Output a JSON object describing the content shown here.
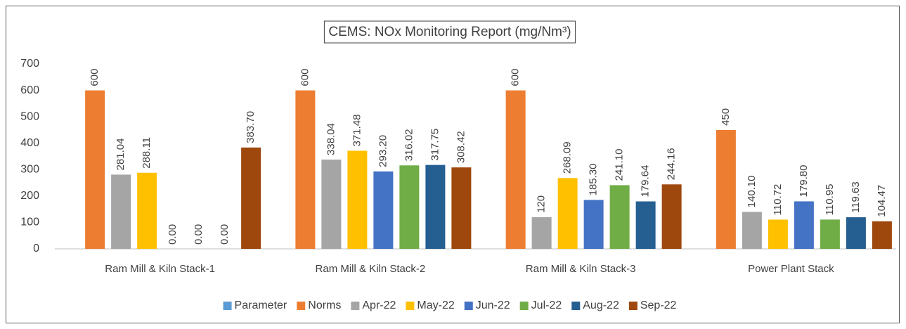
{
  "chart_data": {
    "type": "bar",
    "title": "CEMS: NOx Monitoring Report (mg/Nm³)",
    "categories": [
      "Ram Mill & Kiln Stack-1",
      "Ram Mill & Kiln Stack-2",
      "Ram Mill & Kiln Stack-3",
      "Power Plant Stack"
    ],
    "series": [
      {
        "name": "Parameter",
        "color": "#5b9bd5",
        "values": [
          null,
          null,
          null,
          null
        ]
      },
      {
        "name": "Norms",
        "color": "#ed7d31",
        "values": [
          600,
          600,
          600,
          450
        ]
      },
      {
        "name": "Apr-22",
        "color": "#a5a5a5",
        "values": [
          281.04,
          338.04,
          120,
          140.1
        ],
        "value_labels": [
          "281.04",
          "338.04",
          "120",
          "140.10"
        ]
      },
      {
        "name": "May-22",
        "color": "#ffc000",
        "values": [
          288.11,
          371.48,
          268.09,
          110.72
        ]
      },
      {
        "name": "Jun-22",
        "color": "#4472c4",
        "values": [
          0,
          293.2,
          185.3,
          179.8
        ],
        "value_labels": [
          "0.00",
          "293.20",
          "185.30",
          "179.80"
        ]
      },
      {
        "name": "Jul-22",
        "color": "#70ad47",
        "values": [
          0,
          316.02,
          241.1,
          110.95
        ],
        "value_labels": [
          "0.00",
          "316.02",
          "241.10",
          "110.95"
        ]
      },
      {
        "name": "Aug-22",
        "color": "#255e91",
        "values": [
          0,
          317.75,
          179.64,
          119.63
        ],
        "value_labels": [
          "0.00",
          "317.75",
          "179.64",
          "119.63"
        ]
      },
      {
        "name": "Sep-22",
        "color": "#9e480e",
        "values": [
          383.7,
          308.42,
          244.16,
          104.47
        ],
        "value_labels": [
          "383.70",
          "308.42",
          "244.16",
          "104.47"
        ]
      }
    ],
    "ylim": [
      0,
      700
    ],
    "yticks": [
      0,
      100,
      200,
      300,
      400,
      500,
      600,
      700
    ],
    "grid": false,
    "legend": "bottom"
  }
}
